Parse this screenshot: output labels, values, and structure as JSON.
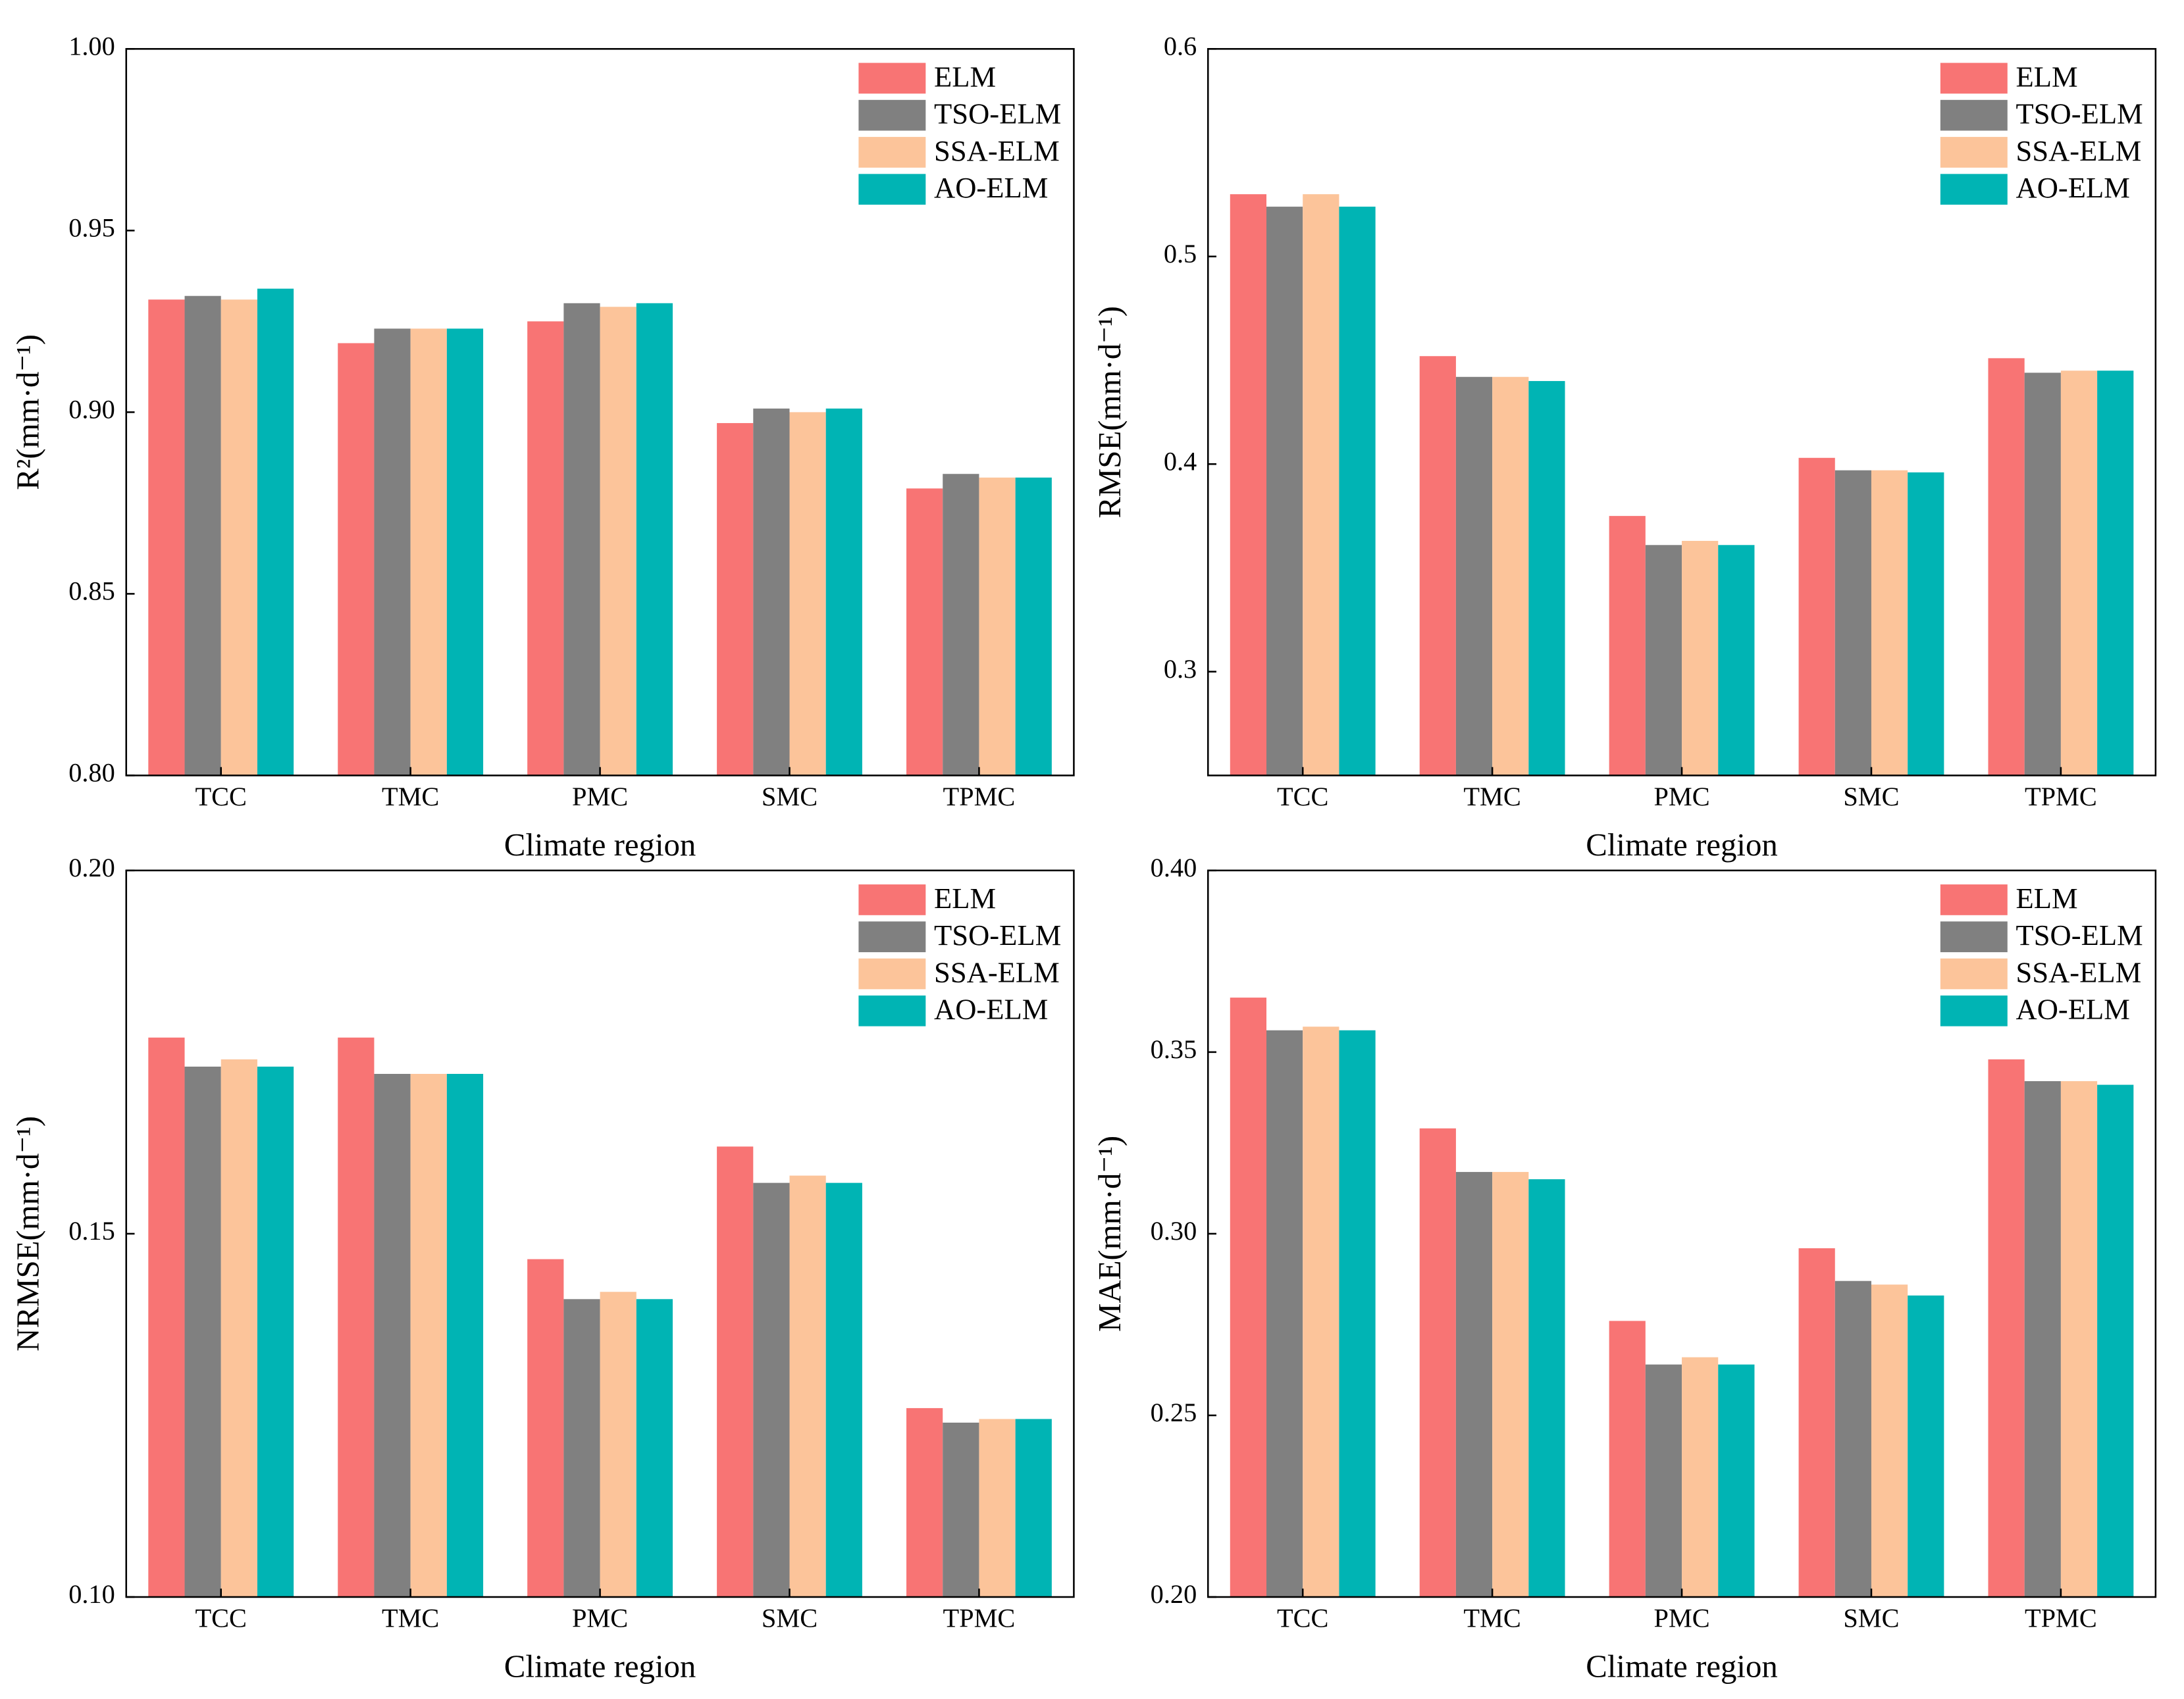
{
  "chart_data": [
    {
      "type": "bar",
      "ylabel": "R²(mm·d⁻¹)",
      "xlabel": "Climate region",
      "categories": [
        "TCC",
        "TMC",
        "PMC",
        "SMC",
        "TPMC"
      ],
      "ylim": [
        0.8,
        1.0
      ],
      "yticks": [
        {
          "value": 0.8,
          "label": "0.80"
        },
        {
          "value": 0.85,
          "label": "0.85"
        },
        {
          "value": 0.9,
          "label": "0.90"
        },
        {
          "value": 0.95,
          "label": "0.95"
        },
        {
          "value": 1.0,
          "label": "1.00"
        }
      ],
      "legend": "upper right",
      "series": [
        {
          "name": "ELM",
          "color": "#f87474",
          "values": [
            0.931,
            0.919,
            0.925,
            0.897,
            0.879
          ]
        },
        {
          "name": "TSO-ELM",
          "color": "#808080",
          "values": [
            0.932,
            0.923,
            0.93,
            0.901,
            0.883
          ]
        },
        {
          "name": "SSA-ELM",
          "color": "#fcc49a",
          "values": [
            0.931,
            0.923,
            0.929,
            0.9,
            0.882
          ]
        },
        {
          "name": "AO-ELM",
          "color": "#00b4b4",
          "values": [
            0.934,
            0.923,
            0.93,
            0.901,
            0.882
          ]
        }
      ]
    },
    {
      "type": "bar",
      "ylabel": "RMSE(mm·d⁻¹)",
      "xlabel": "Climate region",
      "categories": [
        "TCC",
        "TMC",
        "PMC",
        "SMC",
        "TPMC"
      ],
      "ylim": [
        0.25,
        0.6
      ],
      "yticks": [
        0.3,
        0.4,
        0.5,
        0.6
      ],
      "legend": "upper right",
      "series": [
        {
          "name": "ELM",
          "color": "#f87474",
          "values": [
            0.53,
            0.452,
            0.375,
            0.403,
            0.451
          ]
        },
        {
          "name": "TSO-ELM",
          "color": "#808080",
          "values": [
            0.524,
            0.442,
            0.361,
            0.397,
            0.444
          ]
        },
        {
          "name": "SSA-ELM",
          "color": "#fcc49a",
          "values": [
            0.53,
            0.442,
            0.363,
            0.397,
            0.445
          ]
        },
        {
          "name": "AO-ELM",
          "color": "#00b4b4",
          "values": [
            0.524,
            0.44,
            0.361,
            0.396,
            0.445
          ]
        }
      ]
    },
    {
      "type": "bar",
      "ylabel": "NRMSE(mm·d⁻¹)",
      "xlabel": "Climate region",
      "categories": [
        "TCC",
        "TMC",
        "PMC",
        "SMC",
        "TPMC"
      ],
      "ylim": [
        0.1,
        0.2
      ],
      "yticks": [
        {
          "value": 0.1,
          "label": "0.10"
        },
        {
          "value": 0.15,
          "label": "0.15"
        },
        {
          "value": 0.2,
          "label": "0.20"
        }
      ],
      "legend": "upper right",
      "series": [
        {
          "name": "ELM",
          "color": "#f87474",
          "values": [
            0.177,
            0.177,
            0.1465,
            0.162,
            0.126
          ]
        },
        {
          "name": "TSO-ELM",
          "color": "#808080",
          "values": [
            0.173,
            0.172,
            0.141,
            0.157,
            0.124
          ]
        },
        {
          "name": "SSA-ELM",
          "color": "#fcc49a",
          "values": [
            0.174,
            0.172,
            0.142,
            0.158,
            0.1245
          ]
        },
        {
          "name": "AO-ELM",
          "color": "#00b4b4",
          "values": [
            0.173,
            0.172,
            0.141,
            0.157,
            0.1245
          ]
        }
      ]
    },
    {
      "type": "bar",
      "ylabel": "MAE(mm·d⁻¹)",
      "xlabel": "Climate region",
      "categories": [
        "TCC",
        "TMC",
        "PMC",
        "SMC",
        "TPMC"
      ],
      "ylim": [
        0.2,
        0.4
      ],
      "yticks": [
        {
          "value": 0.2,
          "label": "0.20"
        },
        {
          "value": 0.25,
          "label": "0.25"
        },
        {
          "value": 0.3,
          "label": "0.30"
        },
        {
          "value": 0.35,
          "label": "0.35"
        },
        {
          "value": 0.4,
          "label": "0.40"
        }
      ],
      "legend": "upper right",
      "series": [
        {
          "name": "ELM",
          "color": "#f87474",
          "values": [
            0.365,
            0.329,
            0.276,
            0.296,
            0.348
          ]
        },
        {
          "name": "TSO-ELM",
          "color": "#808080",
          "values": [
            0.356,
            0.317,
            0.264,
            0.287,
            0.342
          ]
        },
        {
          "name": "SSA-ELM",
          "color": "#fcc49a",
          "values": [
            0.357,
            0.317,
            0.266,
            0.286,
            0.342
          ]
        },
        {
          "name": "AO-ELM",
          "color": "#00b4b4",
          "values": [
            0.356,
            0.315,
            0.264,
            0.283,
            0.341
          ]
        }
      ]
    }
  ]
}
